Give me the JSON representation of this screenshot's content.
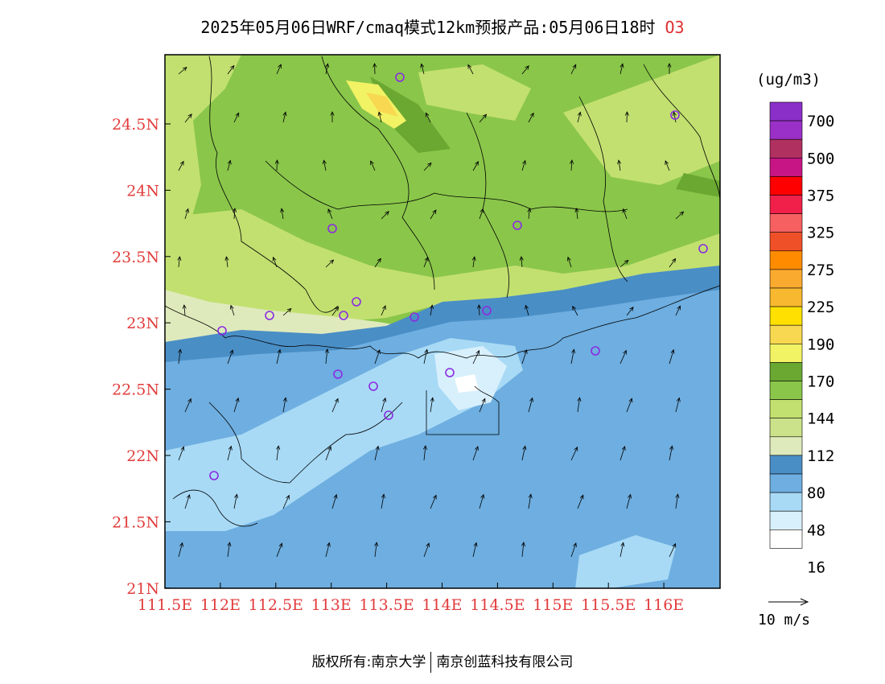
{
  "title": {
    "main": "2025年05月06日WRF/cmaq模式12km预报产品:05月06日18时",
    "species": "O3"
  },
  "map": {
    "lon_labels": [
      "111.5E",
      "112E",
      "112.5E",
      "113E",
      "113.5E",
      "114E",
      "114.5E",
      "115E",
      "115.5E",
      "116E"
    ],
    "lat_labels": [
      "24.5N",
      "24N",
      "23.5N",
      "23N",
      "22.5N",
      "22N",
      "21.5N",
      "21N"
    ],
    "city_marker_icon": "circle-marker-icon",
    "wind_icon": "wind-arrow-icon"
  },
  "colorbar": {
    "units": "(ug/m3)",
    "levels": [
      "700",
      "500",
      "375",
      "325",
      "275",
      "225",
      "190",
      "170",
      "144",
      "112",
      "80",
      "48",
      "16"
    ],
    "colors": [
      "#8b2fc9",
      "#9b30c8",
      "#b03060",
      "#c71585",
      "#ff0000",
      "#f0204a",
      "#f66060",
      "#f05028",
      "#ff8c00",
      "#fbaa30",
      "#f8b830",
      "#ffe000",
      "#f8d850",
      "#f2f265",
      "#6aa832",
      "#8ac64a",
      "#c2e070",
      "#cbe28a",
      "#dfeabc",
      "#4a8ec6",
      "#6eaee0",
      "#a8daf6",
      "#d8f0fc",
      "#ffffff"
    ]
  },
  "wind_reference": {
    "label": "10 m/s"
  },
  "footer": {
    "copyright": "版权所有:南京大学",
    "company": "南京创蓝科技有限公司"
  }
}
